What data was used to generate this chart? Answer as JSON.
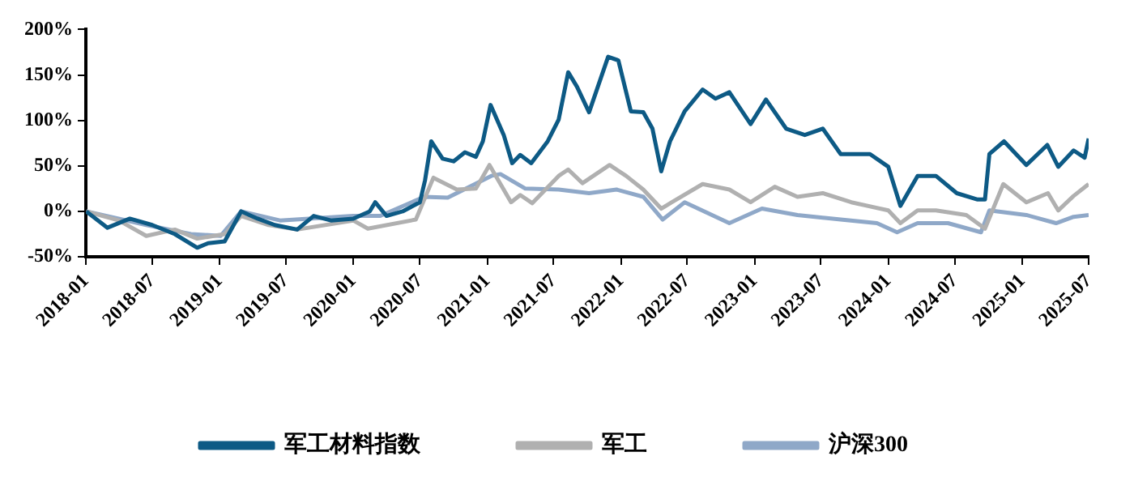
{
  "chart_data": {
    "type": "line",
    "xlim": [
      "2018-01",
      "2025-07"
    ],
    "xticks": [
      "2018-01",
      "2018-07",
      "2019-01",
      "2019-07",
      "2020-01",
      "2020-07",
      "2021-01",
      "2021-07",
      "2022-01",
      "2022-07",
      "2023-01",
      "2023-07",
      "2024-01",
      "2024-07",
      "2025-01",
      "2025-07"
    ],
    "ylim": [
      -50,
      200
    ],
    "yticks": [
      {
        "value": -50,
        "label": "-50%"
      },
      {
        "value": 0,
        "label": "0%"
      },
      {
        "value": 50,
        "label": "50%"
      },
      {
        "value": 100,
        "label": "100%"
      },
      {
        "value": 150,
        "label": "150%"
      },
      {
        "value": 200,
        "label": "200%"
      }
    ],
    "grid": false,
    "legend": "bottom",
    "marker": "none",
    "line_style": "solid",
    "series": [
      {
        "name": "军工材料指数",
        "color": "#0d5a85",
        "x": [
          "2018-01-02",
          "2018-03-01",
          "2018-05-01",
          "2018-07-01",
          "2018-09-01",
          "2018-11-01",
          "2018-12-01",
          "2019-01-15",
          "2019-03-01",
          "2019-04-15",
          "2019-06-01",
          "2019-08-01",
          "2019-09-15",
          "2019-11-01",
          "2020-01-01",
          "2020-02-15",
          "2020-03-01",
          "2020-04-01",
          "2020-05-15",
          "2020-07-01",
          "2020-07-15",
          "2020-08-01",
          "2020-09-01",
          "2020-10-01",
          "2020-11-01",
          "2020-12-01",
          "2020-12-20",
          "2021-01-10",
          "2021-02-15",
          "2021-03-10",
          "2021-04-01",
          "2021-05-01",
          "2021-06-15",
          "2021-07-15",
          "2021-08-10",
          "2021-09-03",
          "2021-10-06",
          "2021-11-27",
          "2021-12-25",
          "2022-01-28",
          "2022-03-03",
          "2022-03-28",
          "2022-04-21",
          "2022-05-15",
          "2022-06-24",
          "2022-08-12",
          "2022-09-16",
          "2022-10-24",
          "2022-12-21",
          "2023-02-01",
          "2023-03-28",
          "2023-05-18",
          "2023-07-06",
          "2023-08-24",
          "2023-11-12",
          "2024-01-01",
          "2024-02-03",
          "2024-03-21",
          "2024-05-10",
          "2024-07-06",
          "2024-09-01",
          "2024-09-21",
          "2024-10-03",
          "2024-11-12",
          "2025-01-12",
          "2025-03-10",
          "2025-04-09",
          "2025-05-21",
          "2025-06-20",
          "2025-07-01"
        ],
        "values": [
          0,
          -18,
          -8,
          -15,
          -25,
          -40,
          -35,
          -33,
          0,
          -8,
          -15,
          -20,
          -5,
          -10,
          -8,
          0,
          10,
          -5,
          0,
          10,
          34,
          77,
          58,
          55,
          65,
          60,
          77,
          117,
          84,
          53,
          62,
          53,
          77,
          101,
          153,
          137,
          109,
          170,
          166,
          110,
          109,
          91,
          44,
          77,
          110,
          134,
          124,
          131,
          96,
          123,
          91,
          84,
          91,
          63,
          63,
          49,
          6,
          39,
          39,
          20,
          13,
          13,
          63,
          77,
          51,
          73,
          49,
          67,
          59,
          80
        ]
      },
      {
        "name": "军工",
        "color": "#b0b0b0",
        "x": [
          "2018-01-02",
          "2018-04-01",
          "2018-06-15",
          "2018-09-01",
          "2018-11-01",
          "2019-01-15",
          "2019-03-01",
          "2019-05-15",
          "2019-08-01",
          "2020-01-01",
          "2020-02-10",
          "2020-06-20",
          "2020-08-07",
          "2020-10-10",
          "2020-12-01",
          "2021-01-07",
          "2021-03-07",
          "2021-04-01",
          "2021-05-04",
          "2021-07-15",
          "2021-08-10",
          "2021-09-18",
          "2021-12-01",
          "2022-01-15",
          "2022-03-03",
          "2022-04-21",
          "2022-05-20",
          "2022-08-12",
          "2022-10-24",
          "2022-12-21",
          "2023-02-25",
          "2023-04-28",
          "2023-07-06",
          "2023-09-22",
          "2024-01-01",
          "2024-02-03",
          "2024-03-21",
          "2024-05-10",
          "2024-08-01",
          "2024-09-21",
          "2024-11-10",
          "2025-01-12",
          "2025-03-12",
          "2025-04-09",
          "2025-05-21",
          "2025-07-01"
        ],
        "values": [
          0,
          -10,
          -27,
          -20,
          -30,
          -25,
          -5,
          -15,
          -20,
          -10,
          -19,
          -9,
          37,
          24,
          25,
          51,
          10,
          18,
          9,
          39,
          46,
          31,
          51,
          39,
          24,
          3,
          10,
          30,
          24,
          10,
          27,
          16,
          20,
          10,
          1,
          -13,
          1,
          1,
          -4,
          -19,
          30,
          10,
          20,
          1,
          17,
          30
        ]
      },
      {
        "name": "沪深300",
        "color": "#8fa8c8",
        "x": [
          "2018-01-02",
          "2018-06-15",
          "2018-10-15",
          "2019-01-04",
          "2019-03-01",
          "2019-06-15",
          "2020-01-01",
          "2020-03-15",
          "2020-07-13",
          "2020-09-15",
          "2021-01-12",
          "2021-02-06",
          "2021-04-15",
          "2021-07-15",
          "2021-10-06",
          "2021-12-20",
          "2022-03-03",
          "2022-04-25",
          "2022-06-24",
          "2022-10-24",
          "2023-01-21",
          "2023-04-28",
          "2023-08-24",
          "2023-12-01",
          "2024-01-25",
          "2024-03-21",
          "2024-06-12",
          "2024-09-10",
          "2024-10-03",
          "2025-01-12",
          "2025-04-03",
          "2025-05-21",
          "2025-07-01"
        ],
        "values": [
          0,
          -15,
          -25,
          -27,
          0,
          -10,
          -5,
          -5,
          16,
          15,
          39,
          41,
          25,
          24,
          20,
          24,
          16,
          -9,
          10,
          -13,
          3,
          -4,
          -9,
          -13,
          -23,
          -13,
          -13,
          -23,
          1,
          -4,
          -13,
          -6,
          -4
        ]
      }
    ]
  }
}
